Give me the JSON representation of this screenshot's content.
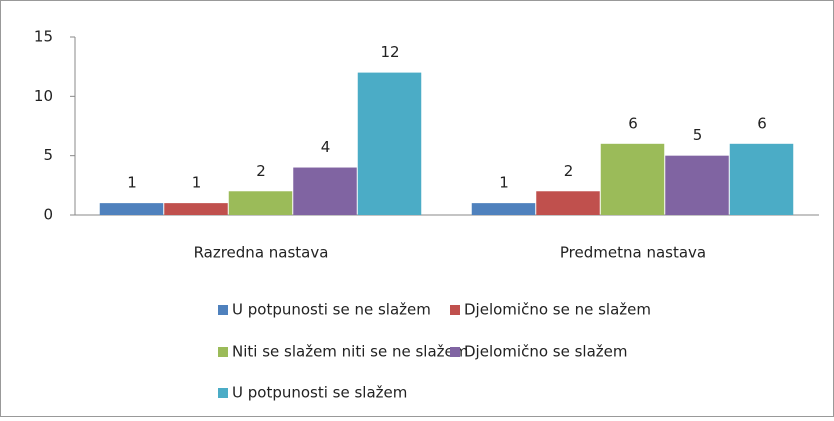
{
  "chart_data": {
    "type": "bar",
    "categories": [
      "Razredna nastava",
      "Predmetna nastava"
    ],
    "series": [
      {
        "name": "U potpunosti se ne slažem",
        "color": "#4f81bd",
        "values": [
          1,
          1
        ]
      },
      {
        "name": "Djelomično se ne slažem",
        "color": "#c0504d",
        "values": [
          1,
          2
        ]
      },
      {
        "name": "Niti se slažem niti se ne slažem",
        "color": "#9bbb59",
        "values": [
          2,
          6
        ]
      },
      {
        "name": "Djelomično se slažem",
        "color": "#8064a2",
        "values": [
          4,
          5
        ]
      },
      {
        "name": "U potpunosti se slažem",
        "color": "#4bacc6",
        "values": [
          12,
          6
        ]
      }
    ],
    "ylim": [
      0,
      15
    ],
    "yticks": [
      0,
      5,
      10,
      15
    ],
    "grid": false,
    "legend": "bottom"
  }
}
